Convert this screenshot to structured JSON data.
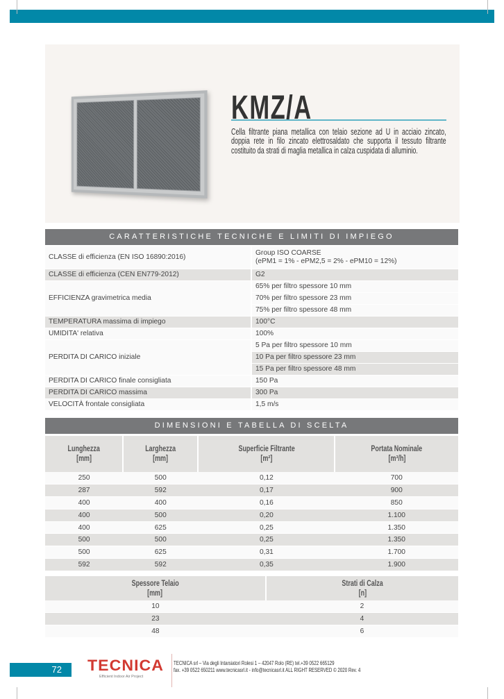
{
  "product": {
    "title": "KMZ/A",
    "description": "Cella filtrante piana metallica con telaio sezione ad U in acciaio zincato, doppia rete in filo zincato elettrosaldato che supporta il tessuto filtrante costituito da strati di maglia metallica in calza cuspidata di alluminio."
  },
  "specs": {
    "heading": "CARATTERISTICHE TECNICHE E LIMITI DI IMPIEGO",
    "rows": [
      {
        "label": "CLASSE di efficienza (EN ISO 16890:2016)",
        "values": [
          "Group ISO COARSE",
          "(ePM1 = 1% - ePM2,5 = 2% - ePM10 = 12%)"
        ]
      },
      {
        "label": "CLASSE di efficienza (CEN EN779-2012)",
        "values": [
          "G2"
        ]
      },
      {
        "label": "EFFICIENZA gravimetrica media",
        "values": [
          "65% per filtro spessore 10  mm",
          "70% per filtro spessore 23 mm",
          "75% per filtro spessore 48 mm"
        ]
      },
      {
        "label": "TEMPERATURA massima di impiego",
        "values": [
          "100°C"
        ]
      },
      {
        "label": "UMIDITA' relativa",
        "values": [
          "100%"
        ]
      },
      {
        "label": "PERDITA DI CARICO iniziale",
        "values": [
          "5 Pa per filtro spessore 10 mm",
          "10 Pa per filtro spessore 23 mm",
          "15 Pa per filtro spessore 48 mm"
        ]
      },
      {
        "label": "PERDITA DI CARICO finale consigliata",
        "values": [
          "150 Pa"
        ]
      },
      {
        "label": "PERDITA DI CARICO massima",
        "values": [
          "300 Pa"
        ]
      },
      {
        "label": "VELOCITÀ frontale consigliata",
        "values": [
          "1,5 m/s"
        ]
      }
    ]
  },
  "dimensions": {
    "heading": "DIMENSIONI E TABELLA DI SCELTA",
    "headers": [
      [
        "Lunghezza",
        "[mm]"
      ],
      [
        "Larghezza",
        "[mm]"
      ],
      [
        "Superficie Filtrante",
        "[m²]"
      ],
      [
        "Portata Nominale",
        "[m³/h]"
      ]
    ],
    "rows": [
      [
        "250",
        "500",
        "0,12",
        "700"
      ],
      [
        "287",
        "592",
        "0,17",
        "900"
      ],
      [
        "400",
        "400",
        "0,16",
        "850"
      ],
      [
        "400",
        "500",
        "0,20",
        "1.100"
      ],
      [
        "400",
        "625",
        "0,25",
        "1.350"
      ],
      [
        "500",
        "500",
        "0,25",
        "1.350"
      ],
      [
        "500",
        "625",
        "0,31",
        "1.700"
      ],
      [
        "592",
        "592",
        "0,35",
        "1.900"
      ]
    ]
  },
  "layers": {
    "headers": [
      [
        "Spessore Telaio",
        "[mm]"
      ],
      [
        "Strati di Calza",
        "[n]"
      ]
    ],
    "rows": [
      [
        "10",
        "2"
      ],
      [
        "23",
        "4"
      ],
      [
        "48",
        "6"
      ]
    ]
  },
  "footer": {
    "page": "72",
    "logo": "TECNICA",
    "tagline": "Efficient Indoor Air Project",
    "line1": "TECNICA srl – Via degli Intarsiatori Rolesi 1 – 42047 Rolo (RE) tel.+39 0522 665129",
    "line2": "fax. +39 0522 650211  www.tecnicasrl.it - info@tecnicasrl.it    ALL RIGHT RESERVED © 2020 Rev. 4"
  },
  "colors": {
    "accent": "#0288a8",
    "band": "#77787a",
    "row_alt": "#e2e1df",
    "logo": "#d23a32"
  }
}
